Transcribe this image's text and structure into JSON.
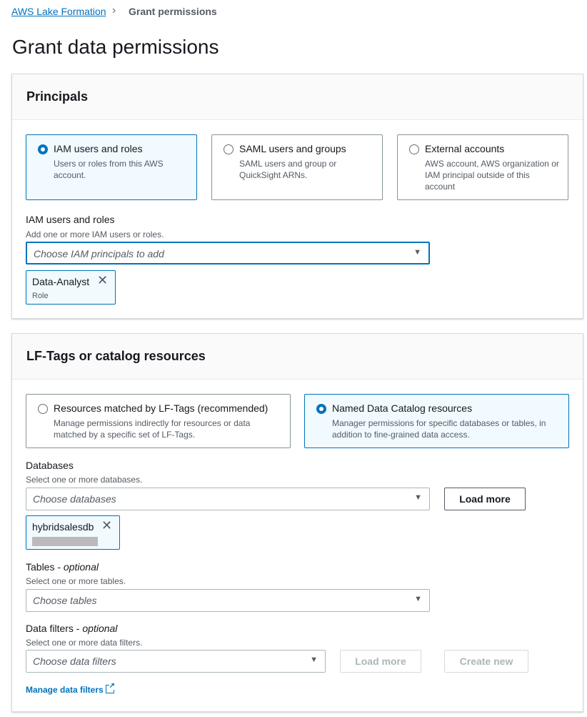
{
  "breadcrumb": {
    "root": "AWS Lake Formation",
    "current": "Grant permissions"
  },
  "page_title": "Grant data permissions",
  "principals": {
    "title": "Principals",
    "options": [
      {
        "label": "IAM users and roles",
        "desc": "Users or roles from this AWS account.",
        "selected": true
      },
      {
        "label": "SAML users and groups",
        "desc": "SAML users and group or QuickSight ARNs.",
        "selected": false
      },
      {
        "label": "External accounts",
        "desc": "AWS account, AWS organization or IAM principal outside of this account",
        "selected": false
      }
    ],
    "field_label": "IAM users and roles",
    "field_desc": "Add one or more IAM users or roles.",
    "placeholder": "Choose IAM principals to add",
    "token": {
      "name": "Data-Analyst",
      "sub": "Role"
    }
  },
  "resources": {
    "title": "LF-Tags or catalog resources",
    "options": [
      {
        "label": "Resources matched by LF-Tags (recommended)",
        "desc": "Manage permissions indirectly for resources or data matched by a specific set of LF-Tags.",
        "selected": false
      },
      {
        "label": "Named Data Catalog resources",
        "desc": "Manager permissions for specific databases or tables, in addition to fine-grained data access.",
        "selected": true
      }
    ],
    "databases": {
      "label": "Databases",
      "desc": "Select one or more databases.",
      "placeholder": "Choose databases",
      "load_more": "Load more",
      "token": "hybridsalesdb"
    },
    "tables": {
      "label": "Tables",
      "optional": "optional",
      "desc": "Select one or more tables.",
      "placeholder": "Choose tables"
    },
    "filters": {
      "label": "Data filters",
      "optional": "optional",
      "desc": "Select one or more data filters.",
      "placeholder": "Choose data filters",
      "load_more": "Load more",
      "create_new": "Create new"
    },
    "manage_link": "Manage data filters"
  }
}
